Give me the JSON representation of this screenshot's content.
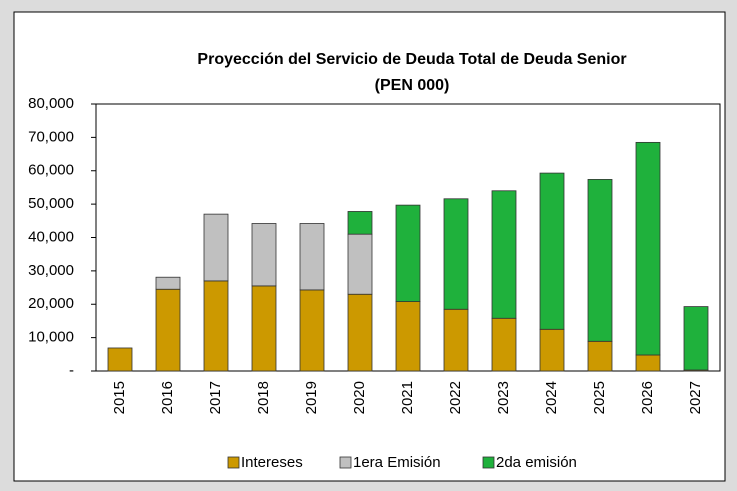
{
  "chart_data": {
    "type": "stacked_bar",
    "title": "Proyección del Servicio de Deuda Total de Deuda Senior",
    "subtitle": "(PEN 000)",
    "categories": [
      "2015",
      "2016",
      "2017",
      "2018",
      "2019",
      "2020",
      "2021",
      "2022",
      "2023",
      "2024",
      "2025",
      "2026",
      "2027"
    ],
    "series": [
      {
        "name": "Intereses",
        "color": "#cc9900",
        "values": [
          6900,
          24500,
          27000,
          25500,
          24300,
          23000,
          20800,
          18500,
          15800,
          12500,
          8900,
          4800,
          300
        ]
      },
      {
        "name": "1era Emisión",
        "color": "#c0c0c0",
        "values": [
          0,
          3600,
          20000,
          18700,
          19900,
          18000,
          0,
          0,
          0,
          0,
          0,
          0,
          0
        ]
      },
      {
        "name": "2da emisión",
        "color": "#1fb13c",
        "values": [
          0,
          0,
          0,
          0,
          0,
          6800,
          28900,
          33100,
          38200,
          46800,
          48500,
          63700,
          19000
        ]
      }
    ],
    "ylim": [
      0,
      80000
    ],
    "yticks": [
      {
        "value": 0,
        "label": "-"
      },
      {
        "value": 10000,
        "label": "10,000"
      },
      {
        "value": 20000,
        "label": "20,000"
      },
      {
        "value": 30000,
        "label": "30,000"
      },
      {
        "value": 40000,
        "label": "40,000"
      },
      {
        "value": 50000,
        "label": "50,000"
      },
      {
        "value": 60000,
        "label": "60,000"
      },
      {
        "value": 70000,
        "label": "70,000"
      },
      {
        "value": 80000,
        "label": "80,000"
      }
    ],
    "grid": false,
    "legend": "bottom"
  }
}
